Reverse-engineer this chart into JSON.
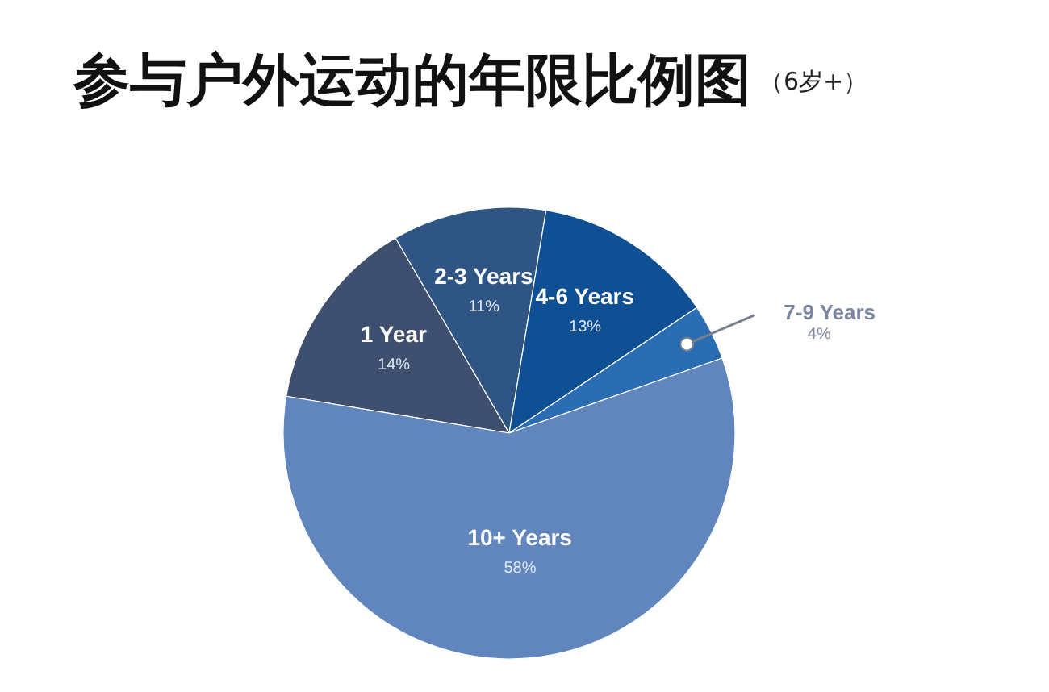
{
  "chart_data": {
    "type": "pie",
    "title": "参与户外运动的年限比例图",
    "subtitle": "（6岁+）",
    "categories": [
      "1 Year",
      "2-3 Years",
      "4-6 Years",
      "7-9 Years",
      "10+ Years"
    ],
    "values": [
      14,
      11,
      13,
      4,
      58
    ],
    "colors": [
      "#3e4f6f",
      "#2f5585",
      "#0f4f94",
      "#2b6db2",
      "#6086bd"
    ],
    "value_labels": [
      "14%",
      "11%",
      "13%",
      "4%",
      "58%"
    ]
  }
}
